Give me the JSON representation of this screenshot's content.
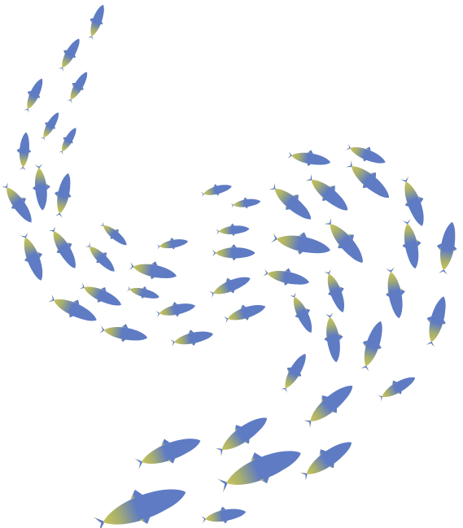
{
  "image": {
    "subject": "school of fish",
    "background_color": "#ffffff",
    "fish_body_color": "#5e7bc4",
    "fish_tail_color": "#c9c45a"
  }
}
